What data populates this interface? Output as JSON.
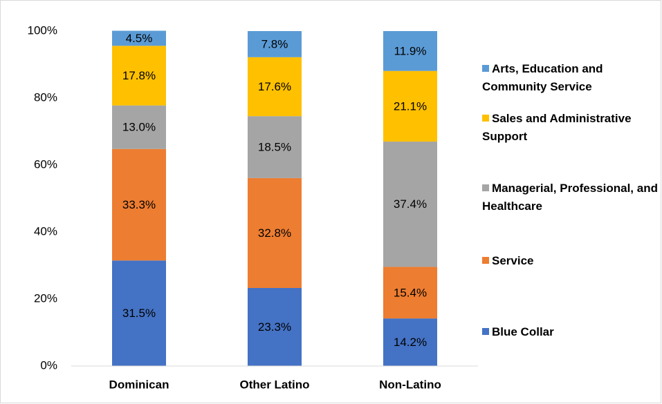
{
  "chart_data": {
    "type": "stacked_bar",
    "categories": [
      "Dominican",
      "Other Latino",
      "Non-Latino"
    ],
    "series": [
      {
        "name": "Blue Collar",
        "color": "#4472c4",
        "values": [
          31.5,
          23.3,
          14.2
        ],
        "value_labels": [
          "31.5%",
          "23.3%",
          "14.2%"
        ]
      },
      {
        "name": "Service",
        "color": "#ed7d31",
        "values": [
          33.3,
          32.8,
          15.4
        ],
        "value_labels": [
          "33.3%",
          "32.8%",
          "15.4%"
        ]
      },
      {
        "name": "Managerial, Professional, and Healthcare",
        "color": "#a5a5a5",
        "values": [
          13.0,
          18.5,
          37.4
        ],
        "value_labels": [
          "13.0%",
          "18.5%",
          "37.4%"
        ]
      },
      {
        "name": "Sales and Administrative Support",
        "color": "#ffc000",
        "values": [
          17.8,
          17.6,
          21.1
        ],
        "value_labels": [
          "17.8%",
          "17.6%",
          "21.1%"
        ]
      },
      {
        "name": "Arts, Education and Community Service",
        "color": "#5b9bd5",
        "values": [
          4.5,
          7.8,
          11.9
        ],
        "value_labels": [
          "4.5%",
          "7.8%",
          "11.9%"
        ]
      }
    ],
    "ylim": [
      0,
      100
    ],
    "yticks": [
      {
        "value": 0,
        "label": "0%"
      },
      {
        "value": 20,
        "label": "20%"
      },
      {
        "value": 40,
        "label": "40%"
      },
      {
        "value": 60,
        "label": "60%"
      },
      {
        "value": 80,
        "label": "80%"
      },
      {
        "value": 100,
        "label": "100%"
      }
    ],
    "grid": false,
    "legend": "right"
  }
}
